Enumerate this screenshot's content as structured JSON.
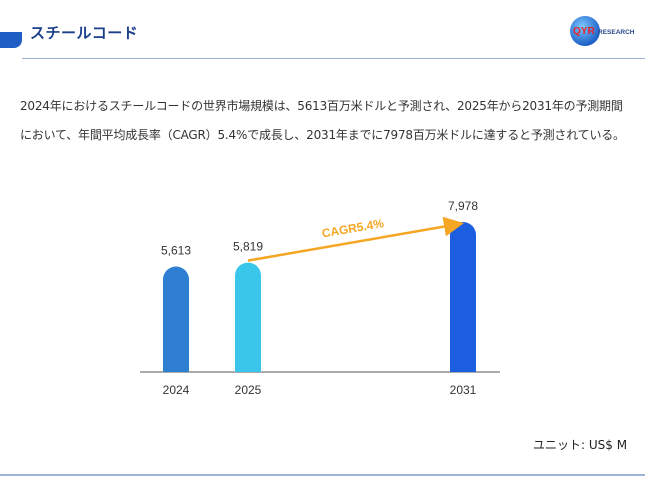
{
  "header": {
    "title": "スチールコード",
    "logo_mark": "QYR",
    "logo_text": "RESEARCH"
  },
  "description": "2024年におけるスチールコードの世界市場規模は、5613百万米ドルと予測され、2025年から2031年の予測期間において、年間平均成長率（CAGR）5.4%で成長し、2031年までに7978百万米ドルに達すると予測されている。",
  "chart_data": {
    "type": "bar",
    "categories": [
      "2024",
      "2025",
      "2031"
    ],
    "values": [
      5613,
      5819,
      7978
    ],
    "value_labels": [
      "5,613",
      "5,819",
      "7,978"
    ],
    "colors": [
      "#2e7fd2",
      "#39c6ea",
      "#1b5fe0"
    ],
    "annotation": {
      "text": "CAGR5.4%",
      "from": "2025",
      "to": "2031",
      "color": "#f5a623"
    }
  },
  "unit_label": "ユニット: US$ M"
}
